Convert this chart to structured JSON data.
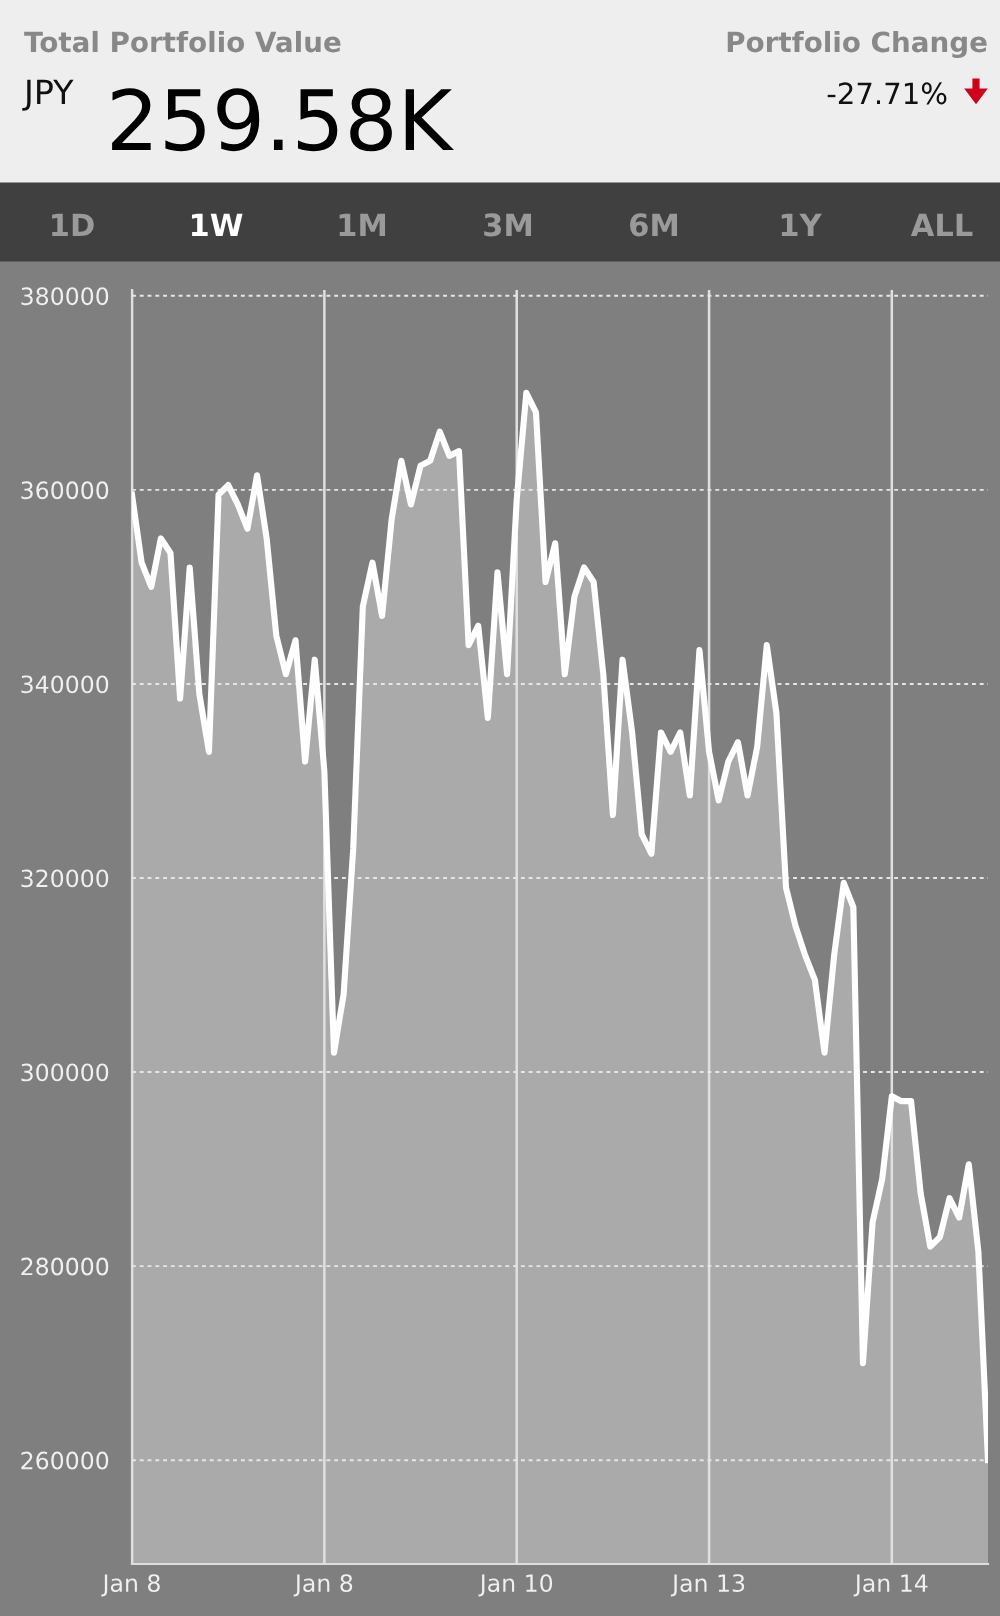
{
  "chart_data": {
    "type": "area",
    "annotations": [
      "Total Portfolio Value",
      "JPY",
      "259.58K",
      "Portfolio Change",
      "-27.71%",
      "1D",
      "1W",
      "1M",
      "3M",
      "6M",
      "1Y",
      "ALL"
    ],
    "categories": [
      "Jan 8",
      null,
      null,
      null,
      null,
      null,
      null,
      null,
      null,
      null,
      null,
      null,
      null,
      null,
      null,
      null,
      null,
      null,
      null,
      null,
      "Jan 8",
      null,
      null,
      null,
      null,
      null,
      null,
      null,
      null,
      null,
      null,
      null,
      null,
      null,
      null,
      null,
      null,
      null,
      null,
      null,
      "Jan 10",
      null,
      null,
      null,
      null,
      null,
      null,
      null,
      null,
      null,
      null,
      null,
      null,
      null,
      null,
      null,
      null,
      null,
      null,
      null,
      "Jan 13",
      null,
      null,
      null,
      null,
      null,
      null,
      null,
      null,
      null,
      null,
      null,
      null,
      null,
      null,
      null,
      null,
      null,
      null,
      "Jan 14",
      null,
      null,
      null,
      null,
      null,
      null,
      null,
      null,
      null,
      null
    ],
    "series": [
      {
        "color": "#ffffff",
        "values": [
          359500,
          352500,
          350000,
          355000,
          353500,
          338500,
          352000,
          339000,
          333000,
          359500,
          360500,
          358500,
          356000,
          361500,
          355000,
          345000,
          341000,
          344500,
          332000,
          342500,
          331000,
          302000,
          308000,
          323000,
          348000,
          352500,
          347000,
          357000,
          363000,
          358500,
          362500,
          363000,
          366000,
          363500,
          364000,
          344000,
          346000,
          336500,
          351500,
          341000,
          359000,
          370000,
          368000,
          350500,
          354500,
          341000,
          349000,
          352000,
          350500,
          341000,
          326500,
          342500,
          335000,
          324500,
          322500,
          335000,
          333000,
          335000,
          328500,
          343500,
          333000,
          328000,
          332000,
          334000,
          328500,
          333500,
          344000,
          337000,
          319000,
          315000,
          312000,
          309500,
          302000,
          312000,
          319500,
          317000,
          270000,
          284500,
          289000,
          297500,
          297000,
          297000,
          287500,
          282000,
          283000,
          287000,
          285000,
          290500,
          281500,
          260000
        ]
      }
    ],
    "ylim": [
      249300,
      380600
    ],
    "yticks": [
      260000,
      280000,
      300000,
      320000,
      340000,
      360000,
      380000
    ],
    "grid": true
  }
}
